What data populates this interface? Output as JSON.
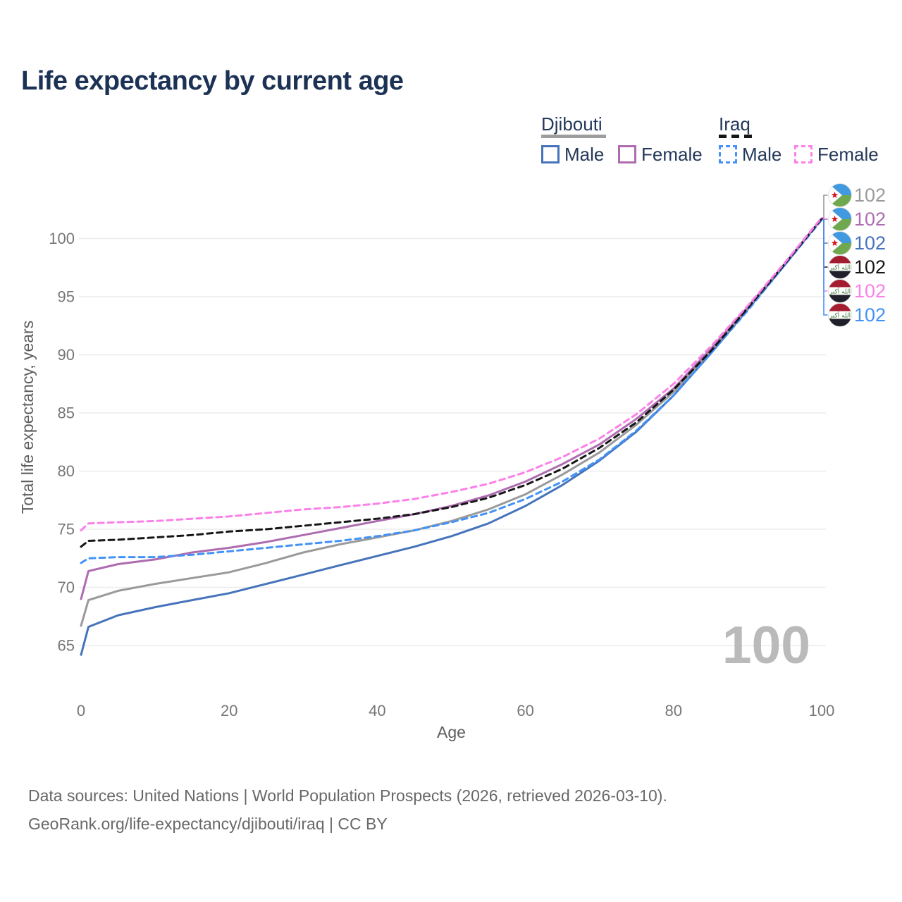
{
  "title": "Life expectancy by current age",
  "legend": {
    "groups": [
      {
        "country": "Djibouti",
        "key_color": "#9e9e9e",
        "key_dashed": false,
        "items": [
          {
            "label": "Male",
            "color": "#4674bb",
            "dashed": false
          },
          {
            "label": "Female",
            "color": "#ae6cb0",
            "dashed": false
          }
        ]
      },
      {
        "country": "Iraq",
        "key_color": "#161616",
        "key_dashed": true,
        "items": [
          {
            "label": "Male",
            "color": "#4292f7",
            "dashed": true
          },
          {
            "label": "Female",
            "color": "#fb80e8",
            "dashed": true
          }
        ]
      }
    ]
  },
  "chart_data": {
    "type": "line",
    "title": "Life expectancy by current age",
    "xlabel": "Age",
    "ylabel": "Total life expectancy, years",
    "xticks": [
      0,
      20,
      40,
      60,
      80,
      100
    ],
    "yticks": [
      65,
      70,
      75,
      80,
      85,
      90,
      95,
      100
    ],
    "xlim": [
      0,
      100
    ],
    "ylim": [
      63,
      103
    ],
    "grid": "horizontal",
    "grid_color": "#ececec",
    "legend_position": "top-right",
    "watermark": "100",
    "series": [
      {
        "id": "djibouti-male",
        "country": "Djibouti",
        "sex": "Male",
        "color": "#4674bb",
        "dashed": false,
        "points": [
          [
            0,
            64.2
          ],
          [
            1,
            66.6
          ],
          [
            5,
            67.6
          ],
          [
            10,
            68.3
          ],
          [
            15,
            68.9
          ],
          [
            20,
            69.5
          ],
          [
            25,
            70.3
          ],
          [
            30,
            71.1
          ],
          [
            35,
            71.9
          ],
          [
            40,
            72.7
          ],
          [
            45,
            73.5
          ],
          [
            50,
            74.4
          ],
          [
            55,
            75.5
          ],
          [
            60,
            77.0
          ],
          [
            65,
            78.8
          ],
          [
            70,
            80.9
          ],
          [
            75,
            83.4
          ],
          [
            80,
            86.5
          ],
          [
            85,
            90.1
          ],
          [
            90,
            93.9
          ],
          [
            95,
            97.7
          ],
          [
            100,
            101.7
          ]
        ]
      },
      {
        "id": "djibouti-all",
        "country": "Djibouti",
        "sex": "All",
        "color": "#9a9a9a",
        "dashed": false,
        "points": [
          [
            0,
            66.7
          ],
          [
            1,
            68.9
          ],
          [
            5,
            69.7
          ],
          [
            10,
            70.3
          ],
          [
            15,
            70.8
          ],
          [
            20,
            71.3
          ],
          [
            25,
            72.1
          ],
          [
            30,
            73.0
          ],
          [
            35,
            73.7
          ],
          [
            40,
            74.3
          ],
          [
            45,
            74.9
          ],
          [
            50,
            75.7
          ],
          [
            55,
            76.7
          ],
          [
            60,
            78.0
          ],
          [
            65,
            79.7
          ],
          [
            70,
            81.6
          ],
          [
            75,
            84.0
          ],
          [
            80,
            86.8
          ],
          [
            85,
            90.3
          ],
          [
            90,
            94.0
          ],
          [
            95,
            97.8
          ],
          [
            100,
            101.7
          ]
        ]
      },
      {
        "id": "djibouti-female",
        "country": "Djibouti",
        "sex": "Female",
        "color": "#ae6cb0",
        "dashed": false,
        "points": [
          [
            0,
            69.0
          ],
          [
            1,
            71.4
          ],
          [
            5,
            72.0
          ],
          [
            10,
            72.4
          ],
          [
            15,
            73.0
          ],
          [
            20,
            73.4
          ],
          [
            25,
            73.9
          ],
          [
            30,
            74.5
          ],
          [
            35,
            75.1
          ],
          [
            40,
            75.7
          ],
          [
            45,
            76.3
          ],
          [
            50,
            77.0
          ],
          [
            55,
            77.9
          ],
          [
            60,
            79.1
          ],
          [
            65,
            80.6
          ],
          [
            70,
            82.3
          ],
          [
            75,
            84.5
          ],
          [
            80,
            87.1
          ],
          [
            85,
            90.5
          ],
          [
            90,
            94.1
          ],
          [
            95,
            97.8
          ],
          [
            100,
            101.7
          ]
        ]
      },
      {
        "id": "iraq-male",
        "country": "Iraq",
        "sex": "Male",
        "color": "#4292f7",
        "dashed": true,
        "points": [
          [
            0,
            72.1
          ],
          [
            1,
            72.5
          ],
          [
            5,
            72.6
          ],
          [
            10,
            72.6
          ],
          [
            15,
            72.8
          ],
          [
            20,
            73.1
          ],
          [
            25,
            73.4
          ],
          [
            30,
            73.7
          ],
          [
            35,
            74.0
          ],
          [
            40,
            74.4
          ],
          [
            45,
            74.9
          ],
          [
            50,
            75.6
          ],
          [
            55,
            76.4
          ],
          [
            60,
            77.6
          ],
          [
            65,
            79.1
          ],
          [
            70,
            81.0
          ],
          [
            75,
            83.5
          ],
          [
            80,
            86.5
          ],
          [
            85,
            90.1
          ],
          [
            90,
            93.8
          ],
          [
            95,
            97.7
          ],
          [
            100,
            101.6
          ]
        ]
      },
      {
        "id": "iraq-all",
        "country": "Iraq",
        "sex": "All",
        "color": "#161616",
        "dashed": true,
        "points": [
          [
            0,
            73.5
          ],
          [
            1,
            74.0
          ],
          [
            5,
            74.1
          ],
          [
            10,
            74.3
          ],
          [
            15,
            74.5
          ],
          [
            20,
            74.8
          ],
          [
            25,
            75.0
          ],
          [
            30,
            75.3
          ],
          [
            35,
            75.6
          ],
          [
            40,
            75.9
          ],
          [
            45,
            76.3
          ],
          [
            50,
            76.9
          ],
          [
            55,
            77.7
          ],
          [
            60,
            78.8
          ],
          [
            65,
            80.2
          ],
          [
            70,
            82.0
          ],
          [
            75,
            84.2
          ],
          [
            80,
            87.0
          ],
          [
            85,
            90.3
          ],
          [
            90,
            94.0
          ],
          [
            95,
            97.8
          ],
          [
            100,
            101.7
          ]
        ]
      },
      {
        "id": "iraq-female",
        "country": "Iraq",
        "sex": "Female",
        "color": "#fb80e8",
        "dashed": true,
        "points": [
          [
            0,
            74.9
          ],
          [
            1,
            75.5
          ],
          [
            5,
            75.6
          ],
          [
            10,
            75.7
          ],
          [
            15,
            75.9
          ],
          [
            20,
            76.1
          ],
          [
            25,
            76.4
          ],
          [
            30,
            76.7
          ],
          [
            35,
            76.9
          ],
          [
            40,
            77.2
          ],
          [
            45,
            77.6
          ],
          [
            50,
            78.2
          ],
          [
            55,
            78.9
          ],
          [
            60,
            79.9
          ],
          [
            65,
            81.2
          ],
          [
            70,
            82.8
          ],
          [
            75,
            84.9
          ],
          [
            80,
            87.5
          ],
          [
            85,
            90.7
          ],
          [
            90,
            94.2
          ],
          [
            95,
            97.9
          ],
          [
            100,
            101.8
          ]
        ]
      }
    ],
    "end_labels": [
      {
        "series": "djibouti-all",
        "flag": "djibouti",
        "value": "102",
        "color": "#9a9a9a"
      },
      {
        "series": "djibouti-female",
        "flag": "djibouti",
        "value": "102",
        "color": "#ae6cb0"
      },
      {
        "series": "djibouti-male",
        "flag": "djibouti",
        "value": "102",
        "color": "#4674bb"
      },
      {
        "series": "iraq-all",
        "flag": "iraq",
        "value": "102",
        "color": "#161616"
      },
      {
        "series": "iraq-female",
        "flag": "iraq",
        "value": "102",
        "color": "#fb80e8"
      },
      {
        "series": "iraq-male",
        "flag": "iraq",
        "value": "102",
        "color": "#4292f7"
      }
    ]
  },
  "footer": {
    "line1": "Data sources: United Nations | World Population Prospects (2026, retrieved 2026-03-10).",
    "line2": "GeoRank.org/life-expectancy/djibouti/iraq | CC BY"
  }
}
